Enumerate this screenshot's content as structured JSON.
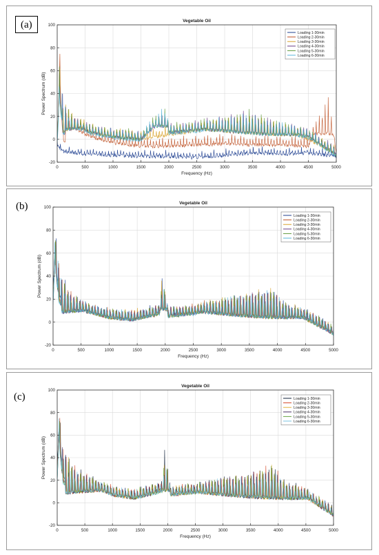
{
  "colors": {
    "series": [
      "#1f3f8f",
      "#c0562b",
      "#d7a12a",
      "#6a3d86",
      "#5f9a3a",
      "#5ab4d8"
    ],
    "series_c": [
      "#12223a",
      "#d44a2a",
      "#e3b23c",
      "#4a2e63",
      "#6aa646",
      "#78c3e0"
    ],
    "grid": "#d9d9d9",
    "axis": "#333333"
  },
  "panels": [
    {
      "label": "(a)"
    },
    {
      "label": "(b)"
    },
    {
      "label": "(c)"
    }
  ],
  "chart_data": [
    {
      "type": "line",
      "title": "Vegetable Oil",
      "xlabel": "Frequency (Hz)",
      "ylabel": "Power Spectrum (dB)",
      "xlim": [
        0,
        5000
      ],
      "ylim": [
        -20,
        100
      ],
      "xticks": [
        0,
        500,
        1000,
        1500,
        2000,
        2500,
        3000,
        3500,
        4000,
        4500,
        5000
      ],
      "yticks": [
        -20,
        0,
        20,
        40,
        60,
        80,
        100
      ],
      "grid": true,
      "legend": "top-right",
      "series": [
        {
          "name": "Loading 1-30min",
          "envelope": {
            "x": [
              0,
              40,
              100,
              300,
              600,
              1000,
              1500,
              2000,
              2500,
              3000,
              3500,
              4000,
              4500,
              5000
            ],
            "y": [
              -2,
              -5,
              -8,
              -9,
              -10,
              -11,
              -12,
              -12,
              -13,
              -11,
              -9,
              -10,
              -9,
              -12
            ]
          }
        },
        {
          "name": "Loading 2-30min",
          "envelope": {
            "x": [
              0,
              40,
              100,
              300,
              600,
              1000,
              1500,
              2000,
              2500,
              3000,
              3500,
              4000,
              4500,
              4850,
              5000
            ],
            "y": [
              20,
              88,
              30,
              18,
              10,
              5,
              2,
              2,
              3,
              4,
              3,
              3,
              2,
              42,
              -5
            ]
          }
        },
        {
          "name": "Loading 3-30min",
          "envelope": {
            "x": [
              0,
              40,
              100,
              300,
              600,
              1000,
              1500,
              2000,
              2500,
              3000,
              3500,
              4000,
              4500,
              5000
            ],
            "y": [
              30,
              70,
              40,
              22,
              14,
              10,
              8,
              12,
              15,
              20,
              22,
              14,
              8,
              -5
            ]
          }
        },
        {
          "name": "Loading 4-30min",
          "envelope": {
            "x": [
              0,
              40,
              100,
              300,
              600,
              1000,
              1500,
              1950,
              2000,
              2500,
              3000,
              3500,
              4000,
              4500,
              5000
            ],
            "y": [
              30,
              72,
              38,
              20,
              14,
              10,
              8,
              28,
              14,
              16,
              22,
              26,
              16,
              10,
              -5
            ]
          }
        },
        {
          "name": "Loading 5-30min",
          "envelope": {
            "x": [
              0,
              40,
              100,
              300,
              600,
              1000,
              1500,
              1950,
              2000,
              2500,
              3000,
              3500,
              4000,
              4500,
              5000
            ],
            "y": [
              28,
              68,
              38,
              20,
              14,
              10,
              8,
              30,
              14,
              16,
              22,
              26,
              16,
              10,
              -6
            ]
          }
        },
        {
          "name": "Loading 6-30min",
          "envelope": {
            "x": [
              0,
              40,
              100,
              300,
              600,
              1000,
              1500,
              1950,
              2000,
              2500,
              3000,
              3500,
              4000,
              4500,
              5000
            ],
            "y": [
              25,
              65,
              36,
              19,
              13,
              9,
              7,
              32,
              13,
              15,
              20,
              24,
              15,
              9,
              -7
            ]
          }
        }
      ]
    },
    {
      "type": "line",
      "title": "Vegetable Oil",
      "xlabel": "Frequency (Hz)",
      "ylabel": "Power Spectrum (dB)",
      "xlim": [
        0,
        5000
      ],
      "ylim": [
        -20,
        100
      ],
      "xticks": [
        0,
        500,
        1000,
        1500,
        2000,
        2500,
        3000,
        3500,
        4000,
        4500,
        5000
      ],
      "yticks": [
        -20,
        0,
        20,
        40,
        60,
        80,
        100
      ],
      "grid": true,
      "legend": "top-right",
      "series": [
        {
          "name": "Loading 1-30min",
          "envelope": {
            "x": [
              0,
              30,
              100,
              300,
              600,
              1000,
              1400,
              1900,
              1950,
              2050,
              2500,
              3000,
              3500,
              3900,
              4100,
              4500,
              5000
            ],
            "y": [
              50,
              90,
              55,
              28,
              18,
              12,
              10,
              16,
              48,
              14,
              16,
              22,
              28,
              32,
              20,
              12,
              -2
            ]
          }
        },
        {
          "name": "Loading 2-30min",
          "envelope": {
            "x": [
              0,
              30,
              100,
              300,
              600,
              1000,
              1400,
              1900,
              1950,
              2050,
              2500,
              3000,
              3500,
              3900,
              4100,
              4500,
              5000
            ],
            "y": [
              48,
              85,
              52,
              27,
              17,
              12,
              10,
              15,
              45,
              13,
              16,
              22,
              27,
              30,
              19,
              11,
              -2
            ]
          }
        },
        {
          "name": "Loading 3-30min",
          "envelope": {
            "x": [
              0,
              30,
              100,
              300,
              600,
              1000,
              1400,
              1900,
              1950,
              2050,
              2500,
              3000,
              3500,
              3900,
              4100,
              4500,
              5000
            ],
            "y": [
              47,
              84,
              51,
              27,
              17,
              12,
              10,
              15,
              44,
              13,
              16,
              22,
              27,
              30,
              19,
              11,
              -2
            ]
          }
        },
        {
          "name": "Loading 4-30min",
          "envelope": {
            "x": [
              0,
              30,
              100,
              300,
              600,
              1000,
              1400,
              1900,
              1950,
              2050,
              2500,
              3000,
              3500,
              3900,
              4100,
              4500,
              5000
            ],
            "y": [
              46,
              83,
              50,
              26,
              17,
              12,
              10,
              15,
              43,
              13,
              15,
              21,
              27,
              30,
              18,
              11,
              -2
            ]
          }
        },
        {
          "name": "Loading 5-30min",
          "envelope": {
            "x": [
              0,
              30,
              100,
              300,
              600,
              1000,
              1400,
              1900,
              1950,
              2050,
              2500,
              3000,
              3500,
              3900,
              4100,
              4500,
              5000
            ],
            "y": [
              46,
              82,
              50,
              26,
              17,
              12,
              10,
              15,
              43,
              13,
              15,
              21,
              26,
              29,
              18,
              11,
              -2
            ]
          }
        },
        {
          "name": "Loading 6-30min",
          "envelope": {
            "x": [
              0,
              30,
              100,
              300,
              600,
              1000,
              1400,
              1900,
              1950,
              2050,
              2500,
              3000,
              3500,
              3900,
              4100,
              4500,
              5000
            ],
            "y": [
              45,
              81,
              49,
              26,
              17,
              12,
              10,
              15,
              42,
              13,
              15,
              21,
              26,
              29,
              18,
              11,
              -2
            ]
          }
        }
      ]
    },
    {
      "type": "line",
      "title": "Vegetable Oil",
      "xlabel": "Frequency (Hz)",
      "ylabel": "Power Spectrum (dB)",
      "xlim": [
        0,
        5000
      ],
      "ylim": [
        -20,
        100
      ],
      "xticks": [
        0,
        500,
        1000,
        1500,
        2000,
        2500,
        3000,
        3500,
        4000,
        4500,
        5000
      ],
      "yticks": [
        -20,
        0,
        20,
        40,
        60,
        80,
        100
      ],
      "grid": true,
      "legend": "top-right",
      "series": [
        {
          "name": "Loading 1-30min",
          "envelope": {
            "x": [
              0,
              30,
              100,
              300,
              600,
              1000,
              1400,
              1900,
              1950,
              2050,
              2500,
              3000,
              3500,
              3900,
              4100,
              4500,
              5000
            ],
            "y": [
              55,
              97,
              55,
              35,
              25,
              15,
              12,
              20,
              52,
              16,
              18,
              24,
              28,
              38,
              22,
              14,
              -3
            ]
          }
        },
        {
          "name": "Loading 2-30min",
          "envelope": {
            "x": [
              0,
              30,
              100,
              300,
              600,
              1000,
              1400,
              1900,
              1950,
              2050,
              2500,
              3000,
              3500,
              3900,
              4100,
              4500,
              5000
            ],
            "y": [
              52,
              90,
              52,
              33,
              24,
              15,
              12,
              19,
              48,
              15,
              17,
              23,
              27,
              35,
              21,
              13,
              -3
            ]
          }
        },
        {
          "name": "Loading 3-30min",
          "envelope": {
            "x": [
              0,
              30,
              100,
              300,
              600,
              1000,
              1400,
              1900,
              1950,
              2050,
              2500,
              3000,
              3500,
              3900,
              4100,
              4500,
              5000
            ],
            "y": [
              50,
              88,
              50,
              32,
              24,
              15,
              12,
              19,
              46,
              15,
              17,
              23,
              27,
              34,
              21,
              13,
              -3
            ]
          }
        },
        {
          "name": "Loading 4-30min",
          "envelope": {
            "x": [
              0,
              30,
              100,
              300,
              600,
              1000,
              1400,
              1900,
              1950,
              2050,
              2500,
              3000,
              3500,
              3900,
              4100,
              4500,
              5000
            ],
            "y": [
              50,
              87,
              50,
              32,
              23,
              15,
              12,
              18,
              45,
              15,
              17,
              23,
              26,
              34,
              20,
              13,
              -3
            ]
          }
        },
        {
          "name": "Loading 5-30min",
          "envelope": {
            "x": [
              0,
              30,
              100,
              300,
              600,
              1000,
              1400,
              1900,
              1950,
              2050,
              2500,
              3000,
              3500,
              3900,
              4100,
              4500,
              5000
            ],
            "y": [
              49,
              86,
              49,
              31,
              23,
              15,
              12,
              18,
              45,
              15,
              17,
              23,
              26,
              33,
              20,
              13,
              -3
            ]
          }
        },
        {
          "name": "Loading 6-30min",
          "envelope": {
            "x": [
              0,
              30,
              100,
              300,
              600,
              1000,
              1400,
              1900,
              1950,
              2050,
              2500,
              3000,
              3500,
              3900,
              4100,
              4500,
              5000
            ],
            "y": [
              48,
              85,
              48,
              31,
              23,
              15,
              12,
              18,
              44,
              15,
              17,
              23,
              26,
              33,
              20,
              13,
              -3
            ]
          }
        }
      ]
    }
  ]
}
